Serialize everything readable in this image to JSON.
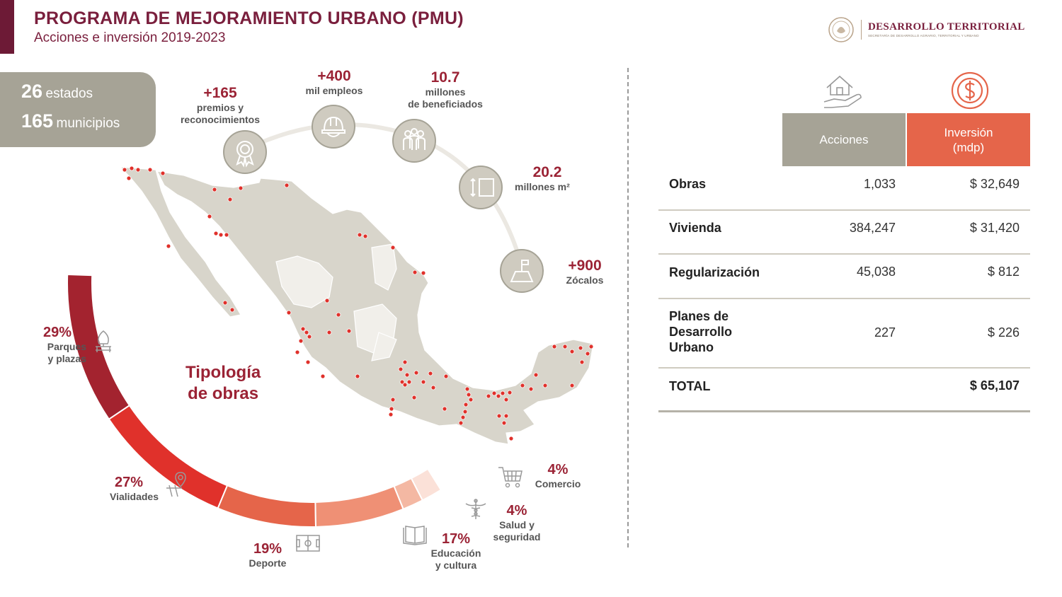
{
  "header": {
    "title": "PROGRAMA DE MEJORAMIENTO URBANO (PMU)",
    "subtitle": "Acciones e inversión 2019-2023"
  },
  "logo": {
    "title": "DESARROLLO TERRITORIAL",
    "subtitle": "SECRETARÍA DE DESARROLLO AGRARIO, TERRITORIAL Y URBANO"
  },
  "coverage": {
    "states_num": "26",
    "states_label": "estados",
    "municipalities_num": "165",
    "municipalities_label": "municipios"
  },
  "metrics": [
    {
      "value": "+165",
      "label": "premios y",
      "label2": "reconocimientos",
      "icon": "award-icon"
    },
    {
      "value": "+400",
      "label": "mil empleos",
      "icon": "hard-hat-icon"
    },
    {
      "value": "10.7",
      "label": "millones",
      "label2": "de beneficiados",
      "icon": "people-icon"
    },
    {
      "value": "20.2",
      "label": "millones m²",
      "icon": "area-icon"
    },
    {
      "value": "+900",
      "label": "Zócalos",
      "icon": "plaza-flag-icon"
    }
  ],
  "typology": {
    "title_line1": "Tipología",
    "title_line2": "de obras",
    "segments": [
      {
        "pct": "29%",
        "label": "Parques",
        "label2": "y plazas",
        "value": 29,
        "color": "#a3232f",
        "icon": "bench-icon"
      },
      {
        "pct": "27%",
        "label": "Vialidades",
        "value": 27,
        "color": "#e0312b",
        "icon": "road-pin-icon"
      },
      {
        "pct": "19%",
        "label": "Deporte",
        "value": 19,
        "color": "#e5654a",
        "icon": "field-icon"
      },
      {
        "pct": "17%",
        "label": "Educación",
        "label2": "y cultura",
        "value": 17,
        "color": "#ef9075",
        "icon": "book-icon"
      },
      {
        "pct": "4%",
        "label": "Salud y",
        "label2": "seguridad",
        "value": 4,
        "color": "#f4b8a3",
        "icon": "caduceus-icon"
      },
      {
        "pct": "4%",
        "label": "Comercio",
        "value": 4,
        "color": "#fbe1d8",
        "icon": "cart-icon"
      }
    ]
  },
  "table": {
    "header_actions": "Acciones",
    "header_investment": "Inversión",
    "header_investment2": "(mdp)",
    "rows": [
      {
        "name": "Obras",
        "actions": "1,033",
        "investment": "$ 32,649"
      },
      {
        "name": "Vivienda",
        "actions": "384,247",
        "investment": "$ 31,420"
      },
      {
        "name": "Regularización",
        "actions": "45,038",
        "investment": "$ 812"
      },
      {
        "name": "Planes de",
        "name2": "Desarrollo",
        "name3": "Urbano",
        "actions": "227",
        "investment": "$ 226"
      }
    ],
    "total": {
      "name": "TOTAL",
      "actions": "",
      "investment": "$ 65,107"
    }
  },
  "colors": {
    "maroon": "#9b2335",
    "gray": "#a6a396",
    "orange": "#e5654a"
  }
}
